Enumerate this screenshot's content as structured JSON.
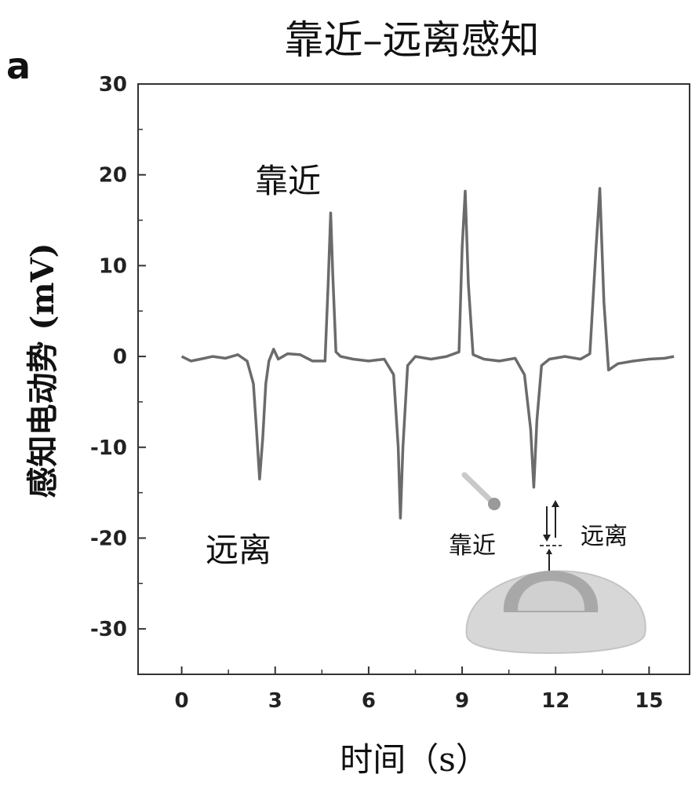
{
  "chart_data": {
    "type": "line",
    "title": "靠近–远离感知",
    "panel_label": "a",
    "xlabel": "时间（s）",
    "ylabel": "感知电动势 (mV)",
    "xlim": [
      -1.4,
      16.3
    ],
    "ylim": [
      -35,
      30
    ],
    "xticks": [
      0,
      3,
      6,
      9,
      12,
      15
    ],
    "yticks": [
      30,
      20,
      10,
      0,
      -10,
      -20,
      -30
    ],
    "grid": false,
    "annotations": {
      "approach_top": "靠近",
      "away_bottom": "远离",
      "inset_approach": "靠近",
      "inset_away": "远离"
    },
    "series": [
      {
        "color": "#6b6b6b",
        "x": [
          0.0,
          0.3,
          0.6,
          1.0,
          1.4,
          1.8,
          2.1,
          2.3,
          2.4,
          2.5,
          2.6,
          2.7,
          2.8,
          2.95,
          3.1,
          3.4,
          3.8,
          4.2,
          4.6,
          4.7,
          4.78,
          4.85,
          4.95,
          5.1,
          5.5,
          6.0,
          6.5,
          6.8,
          6.95,
          7.02,
          7.1,
          7.25,
          7.5,
          8.0,
          8.5,
          8.9,
          9.0,
          9.1,
          9.2,
          9.35,
          9.7,
          10.2,
          10.7,
          11.0,
          11.2,
          11.3,
          11.4,
          11.55,
          11.8,
          12.3,
          12.8,
          13.1,
          13.3,
          13.42,
          13.55,
          13.7,
          14.0,
          14.5,
          15.0,
          15.5,
          15.8
        ],
        "y": [
          0,
          -0.5,
          -0.3,
          0,
          -0.2,
          0.2,
          -0.5,
          -3,
          -8,
          -13.5,
          -9,
          -3,
          -0.5,
          0.8,
          -0.3,
          0.3,
          0.2,
          -0.5,
          -0.5,
          8,
          15.8,
          9,
          0.5,
          0,
          -0.3,
          -0.5,
          -0.3,
          -2,
          -10,
          -17.8,
          -10,
          -1,
          0,
          -0.3,
          0,
          0.5,
          12,
          18.2,
          8,
          0.2,
          -0.3,
          -0.5,
          -0.2,
          -2,
          -8,
          -14.4,
          -7,
          -1,
          -0.3,
          0,
          -0.3,
          0.3,
          12,
          18.5,
          6,
          -1.5,
          -0.8,
          -0.5,
          -0.3,
          -0.2,
          0
        ]
      }
    ]
  }
}
